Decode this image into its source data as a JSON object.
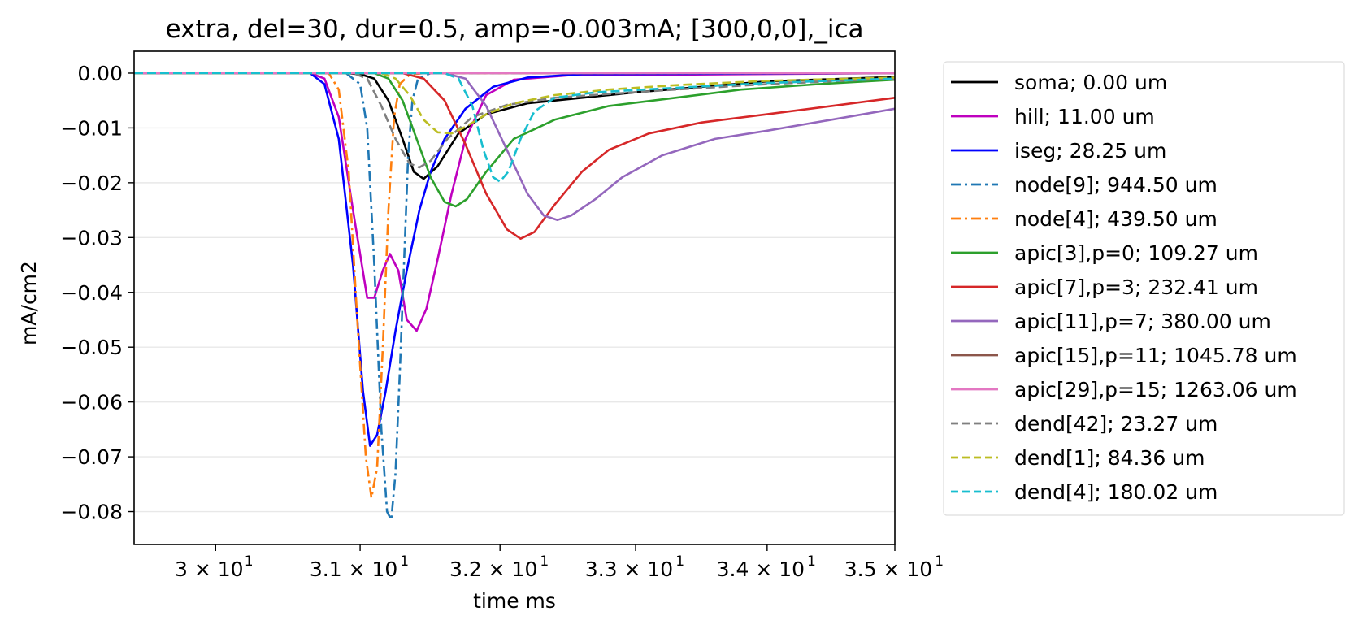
{
  "chart_data": {
    "type": "line",
    "title": "extra, del=30, dur=0.5, amp=-0.003mA; [300,0,0],_ica",
    "xlabel": "time ms",
    "ylabel": "mA/cm2",
    "xscale": "log",
    "xlim": [
      29.45,
      35.0
    ],
    "ylim": [
      -0.086,
      0.004
    ],
    "grid": "horizontal",
    "legend_position": "outside-right",
    "xticks": [
      {
        "value": 30,
        "label": "3 × 10"
      },
      {
        "value": 31,
        "label": "3.1 × 10"
      },
      {
        "value": 32,
        "label": "3.2 × 10"
      },
      {
        "value": 33,
        "label": "3.3 × 10"
      },
      {
        "value": 34,
        "label": "3.4 × 10"
      },
      {
        "value": 35,
        "label": "3.5 × 10"
      }
    ],
    "xtick_exponent": "1",
    "yticks": [
      {
        "value": 0.0,
        "label": "0.00"
      },
      {
        "value": -0.01,
        "label": "−0.01"
      },
      {
        "value": -0.02,
        "label": "−0.02"
      },
      {
        "value": -0.03,
        "label": "−0.03"
      },
      {
        "value": -0.04,
        "label": "−0.04"
      },
      {
        "value": -0.05,
        "label": "−0.05"
      },
      {
        "value": -0.06,
        "label": "−0.06"
      },
      {
        "value": -0.07,
        "label": "−0.07"
      },
      {
        "value": -0.08,
        "label": "−0.08"
      }
    ],
    "series": [
      {
        "name": "soma; 0.00 um",
        "color": "#000000",
        "dash": "solid",
        "points": [
          [
            29.45,
            0
          ],
          [
            30.9,
            0
          ],
          [
            31.0,
            -0.0002
          ],
          [
            31.1,
            -0.001
          ],
          [
            31.2,
            -0.005
          ],
          [
            31.3,
            -0.012
          ],
          [
            31.38,
            -0.018
          ],
          [
            31.45,
            -0.0193
          ],
          [
            31.55,
            -0.017
          ],
          [
            31.7,
            -0.011
          ],
          [
            31.9,
            -0.0075
          ],
          [
            32.2,
            -0.0055
          ],
          [
            32.6,
            -0.0045
          ],
          [
            33.0,
            -0.0035
          ],
          [
            33.5,
            -0.0025
          ],
          [
            34.0,
            -0.0015
          ],
          [
            35.0,
            -0.0007
          ]
        ]
      },
      {
        "name": "hill; 11.00 um",
        "color": "#bf00bf",
        "dash": "solid",
        "points": [
          [
            29.45,
            0
          ],
          [
            30.65,
            0
          ],
          [
            30.75,
            -0.001
          ],
          [
            30.85,
            -0.008
          ],
          [
            30.95,
            -0.025
          ],
          [
            31.05,
            -0.041
          ],
          [
            31.1,
            -0.041
          ],
          [
            31.16,
            -0.036
          ],
          [
            31.21,
            -0.033
          ],
          [
            31.27,
            -0.036
          ],
          [
            31.33,
            -0.045
          ],
          [
            31.4,
            -0.047
          ],
          [
            31.47,
            -0.043
          ],
          [
            31.55,
            -0.034
          ],
          [
            31.65,
            -0.022
          ],
          [
            31.75,
            -0.012
          ],
          [
            31.9,
            -0.004
          ],
          [
            32.1,
            -0.0012
          ],
          [
            32.5,
            -0.0004
          ],
          [
            35.0,
            0
          ]
        ]
      },
      {
        "name": "iseg; 28.25 um",
        "color": "#0000ff",
        "dash": "solid",
        "points": [
          [
            29.45,
            0
          ],
          [
            30.65,
            0
          ],
          [
            30.75,
            -0.002
          ],
          [
            30.85,
            -0.012
          ],
          [
            30.95,
            -0.035
          ],
          [
            31.02,
            -0.058
          ],
          [
            31.07,
            -0.068
          ],
          [
            31.12,
            -0.066
          ],
          [
            31.18,
            -0.058
          ],
          [
            31.25,
            -0.047
          ],
          [
            31.33,
            -0.036
          ],
          [
            31.42,
            -0.025
          ],
          [
            31.5,
            -0.018
          ],
          [
            31.6,
            -0.012
          ],
          [
            31.75,
            -0.0065
          ],
          [
            31.95,
            -0.0025
          ],
          [
            32.2,
            -0.0008
          ],
          [
            32.6,
            -0.0002
          ],
          [
            35.0,
            0
          ]
        ]
      },
      {
        "name": "node[9]; 944.50 um",
        "color": "#1f77b4",
        "dash": "dashdot",
        "points": [
          [
            29.45,
            0
          ],
          [
            30.9,
            0
          ],
          [
            31.0,
            -0.002
          ],
          [
            31.05,
            -0.01
          ],
          [
            31.1,
            -0.035
          ],
          [
            31.15,
            -0.065
          ],
          [
            31.19,
            -0.08
          ],
          [
            31.22,
            -0.0815
          ],
          [
            31.25,
            -0.073
          ],
          [
            31.28,
            -0.055
          ],
          [
            31.31,
            -0.035
          ],
          [
            31.34,
            -0.015
          ],
          [
            31.37,
            -0.005
          ],
          [
            31.41,
            -0.001
          ],
          [
            31.5,
            0
          ],
          [
            35.0,
            0
          ]
        ]
      },
      {
        "name": "node[4]; 439.50 um",
        "color": "#ff7f0e",
        "dash": "dashdot",
        "points": [
          [
            29.45,
            0
          ],
          [
            30.78,
            0
          ],
          [
            30.85,
            -0.003
          ],
          [
            30.92,
            -0.018
          ],
          [
            30.98,
            -0.045
          ],
          [
            31.04,
            -0.07
          ],
          [
            31.08,
            -0.0775
          ],
          [
            31.12,
            -0.072
          ],
          [
            31.16,
            -0.05
          ],
          [
            31.2,
            -0.025
          ],
          [
            31.24,
            -0.008
          ],
          [
            31.28,
            -0.002
          ],
          [
            31.35,
            -0.0003
          ],
          [
            31.45,
            0
          ],
          [
            35.0,
            0
          ]
        ]
      },
      {
        "name": "apic[3],p=0; 109.27 um",
        "color": "#2ca02c",
        "dash": "solid",
        "points": [
          [
            29.45,
            0
          ],
          [
            31.1,
            0
          ],
          [
            31.2,
            -0.001
          ],
          [
            31.3,
            -0.005
          ],
          [
            31.4,
            -0.012
          ],
          [
            31.5,
            -0.019
          ],
          [
            31.6,
            -0.0235
          ],
          [
            31.68,
            -0.0243
          ],
          [
            31.76,
            -0.023
          ],
          [
            31.9,
            -0.018
          ],
          [
            32.1,
            -0.012
          ],
          [
            32.4,
            -0.0085
          ],
          [
            32.8,
            -0.006
          ],
          [
            33.3,
            -0.0045
          ],
          [
            33.8,
            -0.003
          ],
          [
            34.4,
            -0.002
          ],
          [
            35.0,
            -0.0012
          ]
        ]
      },
      {
        "name": "apic[7],p=3; 232.41 um",
        "color": "#d62728",
        "dash": "solid",
        "points": [
          [
            29.45,
            0
          ],
          [
            31.3,
            0
          ],
          [
            31.45,
            -0.001
          ],
          [
            31.6,
            -0.005
          ],
          [
            31.75,
            -0.013
          ],
          [
            31.9,
            -0.022
          ],
          [
            32.05,
            -0.0285
          ],
          [
            32.15,
            -0.0302
          ],
          [
            32.25,
            -0.029
          ],
          [
            32.4,
            -0.024
          ],
          [
            32.6,
            -0.018
          ],
          [
            32.8,
            -0.014
          ],
          [
            33.1,
            -0.011
          ],
          [
            33.5,
            -0.009
          ],
          [
            34.0,
            -0.0075
          ],
          [
            34.5,
            -0.006
          ],
          [
            35.0,
            -0.0045
          ]
        ]
      },
      {
        "name": "apic[11],p=7; 380.00 um",
        "color": "#9467bd",
        "dash": "solid",
        "points": [
          [
            29.45,
            0
          ],
          [
            31.6,
            0
          ],
          [
            31.75,
            -0.001
          ],
          [
            31.9,
            -0.006
          ],
          [
            32.05,
            -0.014
          ],
          [
            32.2,
            -0.022
          ],
          [
            32.32,
            -0.026
          ],
          [
            32.42,
            -0.0268
          ],
          [
            32.52,
            -0.026
          ],
          [
            32.7,
            -0.023
          ],
          [
            32.9,
            -0.019
          ],
          [
            33.2,
            -0.015
          ],
          [
            33.6,
            -0.012
          ],
          [
            34.0,
            -0.0105
          ],
          [
            34.5,
            -0.0085
          ],
          [
            35.0,
            -0.0065
          ]
        ]
      },
      {
        "name": "apic[15],p=11; 1045.78 um",
        "color": "#8c564b",
        "dash": "solid",
        "points": [
          [
            29.45,
            0
          ],
          [
            35.0,
            0
          ]
        ]
      },
      {
        "name": "apic[29],p=15; 1263.06 um",
        "color": "#e377c2",
        "dash": "solid",
        "points": [
          [
            29.45,
            0
          ],
          [
            35.0,
            0
          ]
        ]
      },
      {
        "name": "dend[42]; 23.27 um",
        "color": "#7f7f7f",
        "dash": "dashed",
        "points": [
          [
            29.45,
            0
          ],
          [
            30.95,
            0
          ],
          [
            31.05,
            -0.001
          ],
          [
            31.15,
            -0.006
          ],
          [
            31.25,
            -0.012
          ],
          [
            31.35,
            -0.0165
          ],
          [
            31.42,
            -0.0172
          ],
          [
            31.5,
            -0.016
          ],
          [
            31.62,
            -0.012
          ],
          [
            31.8,
            -0.008
          ],
          [
            32.05,
            -0.0058
          ],
          [
            32.4,
            -0.0045
          ],
          [
            32.8,
            -0.0038
          ],
          [
            33.3,
            -0.003
          ],
          [
            34.0,
            -0.002
          ],
          [
            35.0,
            -0.001
          ]
        ]
      },
      {
        "name": "dend[1]; 84.36 um",
        "color": "#bcbd22",
        "dash": "dashed",
        "points": [
          [
            29.45,
            0
          ],
          [
            31.15,
            0
          ],
          [
            31.25,
            -0.001
          ],
          [
            31.35,
            -0.004
          ],
          [
            31.45,
            -0.0085
          ],
          [
            31.55,
            -0.0108
          ],
          [
            31.65,
            -0.011
          ],
          [
            31.75,
            -0.0098
          ],
          [
            31.9,
            -0.0075
          ],
          [
            32.1,
            -0.0055
          ],
          [
            32.4,
            -0.004
          ],
          [
            32.8,
            -0.003
          ],
          [
            33.3,
            -0.0022
          ],
          [
            34.0,
            -0.0014
          ],
          [
            35.0,
            -0.0008
          ]
        ]
      },
      {
        "name": "dend[4]; 180.02 um",
        "color": "#17becf",
        "dash": "dashed",
        "points": [
          [
            29.45,
            0
          ],
          [
            31.6,
            0
          ],
          [
            31.7,
            -0.001
          ],
          [
            31.8,
            -0.006
          ],
          [
            31.88,
            -0.014
          ],
          [
            31.95,
            -0.019
          ],
          [
            32.0,
            -0.0198
          ],
          [
            32.06,
            -0.018
          ],
          [
            32.15,
            -0.012
          ],
          [
            32.25,
            -0.007
          ],
          [
            32.4,
            -0.0045
          ],
          [
            32.7,
            -0.0035
          ],
          [
            33.2,
            -0.0028
          ],
          [
            34.0,
            -0.0018
          ],
          [
            35.0,
            -0.001
          ]
        ]
      }
    ]
  }
}
